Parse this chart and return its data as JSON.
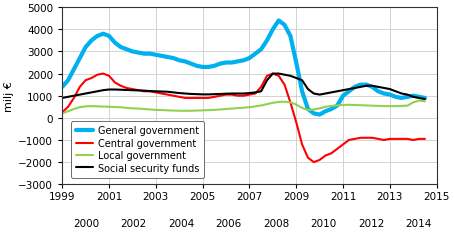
{
  "title": "",
  "ylabel": "milj €",
  "ylim": [
    -3000,
    5000
  ],
  "yticks": [
    -3000,
    -2000,
    -1000,
    0,
    1000,
    2000,
    3000,
    4000,
    5000
  ],
  "background_color": "#ffffff",
  "plot_bg_color": "#ffffff",
  "grid_color": "#cccccc",
  "series": {
    "general_government": {
      "label": "General government",
      "color": "#00b0f0",
      "linewidth": 3.0,
      "years": [
        1999,
        1999.25,
        1999.5,
        1999.75,
        2000,
        2000.25,
        2000.5,
        2000.75,
        2001,
        2001.25,
        2001.5,
        2001.75,
        2002,
        2002.25,
        2002.5,
        2002.75,
        2003,
        2003.25,
        2003.5,
        2003.75,
        2004,
        2004.25,
        2004.5,
        2004.75,
        2005,
        2005.25,
        2005.5,
        2005.75,
        2006,
        2006.25,
        2006.5,
        2006.75,
        2007,
        2007.25,
        2007.5,
        2007.75,
        2008,
        2008.25,
        2008.5,
        2008.75,
        2009,
        2009.25,
        2009.5,
        2009.75,
        2010,
        2010.25,
        2010.5,
        2010.75,
        2011,
        2011.25,
        2011.5,
        2011.75,
        2012,
        2012.25,
        2012.5,
        2012.75,
        2013,
        2013.25,
        2013.5,
        2013.75,
        2014,
        2014.25,
        2014.5
      ],
      "values": [
        1400,
        1700,
        2200,
        2700,
        3200,
        3500,
        3700,
        3800,
        3700,
        3400,
        3200,
        3100,
        3000,
        2950,
        2900,
        2900,
        2850,
        2800,
        2750,
        2700,
        2600,
        2550,
        2450,
        2350,
        2300,
        2300,
        2350,
        2450,
        2500,
        2500,
        2550,
        2600,
        2700,
        2900,
        3100,
        3500,
        4000,
        4400,
        4200,
        3700,
        2500,
        1200,
        400,
        200,
        150,
        300,
        400,
        550,
        1000,
        1200,
        1400,
        1500,
        1500,
        1400,
        1200,
        1100,
        1050,
        950,
        900,
        950,
        1000,
        950,
        900
      ]
    },
    "central_government": {
      "label": "Central government",
      "color": "#ff0000",
      "linewidth": 1.5,
      "years": [
        1999,
        1999.25,
        1999.5,
        1999.75,
        2000,
        2000.25,
        2000.5,
        2000.75,
        2001,
        2001.25,
        2001.5,
        2001.75,
        2002,
        2002.25,
        2002.5,
        2002.75,
        2003,
        2003.25,
        2003.5,
        2003.75,
        2004,
        2004.25,
        2004.5,
        2004.75,
        2005,
        2005.25,
        2005.5,
        2005.75,
        2006,
        2006.25,
        2006.5,
        2006.75,
        2007,
        2007.25,
        2007.5,
        2007.75,
        2008,
        2008.25,
        2008.5,
        2008.75,
        2009,
        2009.25,
        2009.5,
        2009.75,
        2010,
        2010.25,
        2010.5,
        2010.75,
        2011,
        2011.25,
        2011.5,
        2011.75,
        2012,
        2012.25,
        2012.5,
        2012.75,
        2013,
        2013.25,
        2013.5,
        2013.75,
        2014,
        2014.25,
        2014.5
      ],
      "values": [
        250,
        500,
        900,
        1400,
        1700,
        1800,
        1950,
        2000,
        1900,
        1600,
        1450,
        1350,
        1300,
        1250,
        1200,
        1200,
        1150,
        1100,
        1050,
        1000,
        950,
        900,
        900,
        900,
        900,
        900,
        950,
        1000,
        1050,
        1050,
        1000,
        1000,
        1050,
        1100,
        1400,
        1900,
        2000,
        1900,
        1500,
        700,
        -200,
        -1200,
        -1800,
        -2000,
        -1900,
        -1700,
        -1600,
        -1400,
        -1200,
        -1000,
        -950,
        -900,
        -900,
        -900,
        -950,
        -1000,
        -950,
        -950,
        -950,
        -950,
        -1000,
        -950,
        -950
      ]
    },
    "local_government": {
      "label": "Local government",
      "color": "#92d050",
      "linewidth": 1.5,
      "years": [
        1999,
        1999.25,
        1999.5,
        1999.75,
        2000,
        2000.25,
        2000.5,
        2000.75,
        2001,
        2001.25,
        2001.5,
        2001.75,
        2002,
        2002.25,
        2002.5,
        2002.75,
        2003,
        2003.25,
        2003.5,
        2003.75,
        2004,
        2004.25,
        2004.5,
        2004.75,
        2005,
        2005.25,
        2005.5,
        2005.75,
        2006,
        2006.25,
        2006.5,
        2006.75,
        2007,
        2007.25,
        2007.5,
        2007.75,
        2008,
        2008.25,
        2008.5,
        2008.75,
        2009,
        2009.25,
        2009.5,
        2009.75,
        2010,
        2010.25,
        2010.5,
        2010.75,
        2011,
        2011.25,
        2011.5,
        2011.75,
        2012,
        2012.25,
        2012.5,
        2012.75,
        2013,
        2013.25,
        2013.5,
        2013.75,
        2014,
        2014.25,
        2014.5
      ],
      "values": [
        200,
        300,
        400,
        480,
        520,
        530,
        520,
        510,
        500,
        490,
        480,
        450,
        430,
        420,
        400,
        380,
        360,
        350,
        340,
        330,
        320,
        320,
        320,
        330,
        340,
        350,
        360,
        380,
        400,
        420,
        440,
        460,
        480,
        520,
        560,
        620,
        680,
        720,
        730,
        700,
        600,
        450,
        350,
        380,
        430,
        500,
        540,
        560,
        580,
        590,
        580,
        570,
        560,
        550,
        540,
        530,
        530,
        530,
        540,
        550,
        700,
        780,
        750
      ]
    },
    "social_security_funds": {
      "label": "Social security funds",
      "color": "#000000",
      "linewidth": 1.5,
      "years": [
        1999,
        1999.25,
        1999.5,
        1999.75,
        2000,
        2000.25,
        2000.5,
        2000.75,
        2001,
        2001.25,
        2001.5,
        2001.75,
        2002,
        2002.25,
        2002.5,
        2002.75,
        2003,
        2003.25,
        2003.5,
        2003.75,
        2004,
        2004.25,
        2004.5,
        2004.75,
        2005,
        2005.25,
        2005.5,
        2005.75,
        2006,
        2006.25,
        2006.5,
        2006.75,
        2007,
        2007.25,
        2007.5,
        2007.75,
        2008,
        2008.25,
        2008.5,
        2008.75,
        2009,
        2009.25,
        2009.5,
        2009.75,
        2010,
        2010.25,
        2010.5,
        2010.75,
        2011,
        2011.25,
        2011.5,
        2011.75,
        2012,
        2012.25,
        2012.5,
        2012.75,
        2013,
        2013.25,
        2013.5,
        2013.75,
        2014,
        2014.25,
        2014.5
      ],
      "values": [
        900,
        950,
        1000,
        1050,
        1100,
        1150,
        1200,
        1250,
        1280,
        1280,
        1270,
        1260,
        1250,
        1240,
        1230,
        1210,
        1200,
        1190,
        1180,
        1150,
        1120,
        1100,
        1080,
        1070,
        1060,
        1060,
        1070,
        1080,
        1090,
        1100,
        1100,
        1100,
        1120,
        1150,
        1200,
        1700,
        2000,
        2000,
        1950,
        1900,
        1800,
        1700,
        1300,
        1100,
        1050,
        1100,
        1150,
        1200,
        1250,
        1300,
        1350,
        1400,
        1450,
        1450,
        1400,
        1350,
        1300,
        1200,
        1100,
        1050,
        950,
        900,
        850
      ]
    }
  },
  "xticks_major": [
    1999,
    2001,
    2003,
    2005,
    2007,
    2009,
    2011,
    2013,
    2015
  ],
  "xticks_minor": [
    2000,
    2002,
    2004,
    2006,
    2008,
    2010,
    2012,
    2014
  ],
  "xlim": [
    1999,
    2014.75
  ],
  "legend_fontsize": 7.0,
  "tick_fontsize": 7.5,
  "ylabel_fontsize": 8.0
}
